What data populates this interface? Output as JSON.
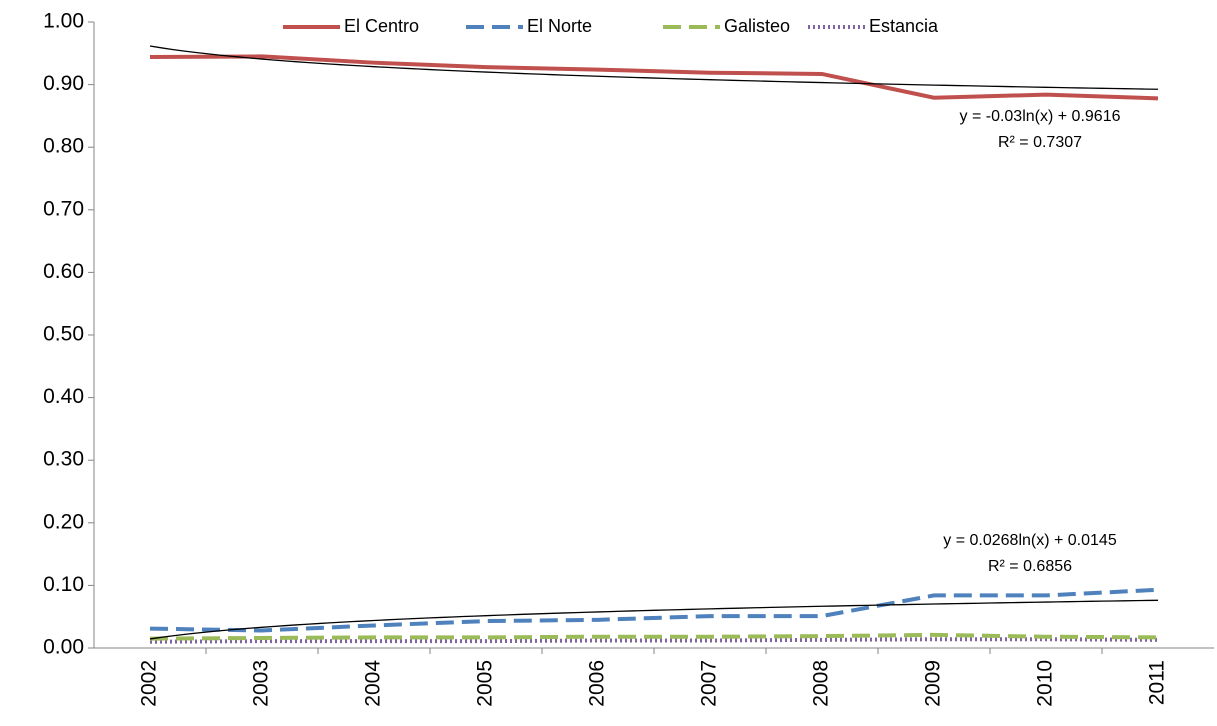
{
  "chart_data": {
    "type": "line",
    "categories": [
      "2002",
      "2003",
      "2004",
      "2005",
      "2006",
      "2007",
      "2008",
      "2009",
      "2010",
      "2011"
    ],
    "series": [
      {
        "name": "El Centro",
        "color": "#c0504d",
        "dash": "solid",
        "values": [
          0.944,
          0.945,
          0.935,
          0.928,
          0.924,
          0.919,
          0.917,
          0.879,
          0.884,
          0.878
        ]
      },
      {
        "name": "El Norte",
        "color": "#4f81bd",
        "dash": "dash",
        "values": [
          0.031,
          0.028,
          0.036,
          0.043,
          0.045,
          0.051,
          0.051,
          0.084,
          0.084,
          0.093
        ]
      },
      {
        "name": "Galisteo",
        "color": "#9bbb59",
        "dash": "dash",
        "values": [
          0.015,
          0.016,
          0.017,
          0.017,
          0.018,
          0.018,
          0.019,
          0.021,
          0.018,
          0.017
        ]
      },
      {
        "name": "Estancia",
        "color": "#8064a2",
        "dash": "dot",
        "values": [
          0.01,
          0.011,
          0.011,
          0.011,
          0.012,
          0.012,
          0.013,
          0.014,
          0.014,
          0.013
        ]
      }
    ],
    "trendlines": [
      {
        "slope": -0.03,
        "intercept": 0.9616,
        "equation": "y = -0.03ln(x) + 0.9616",
        "r2": "R² = 0.7307",
        "color": "#000000"
      },
      {
        "slope": 0.0268,
        "intercept": 0.0145,
        "equation": "y = 0.0268ln(x) + 0.0145",
        "r2": "R² = 0.6856",
        "color": "#000000"
      }
    ],
    "ylim": [
      0,
      1
    ],
    "yticks": [
      {
        "value": 0,
        "label": "0.00"
      },
      {
        "value": 0.1,
        "label": "0.10"
      },
      {
        "value": 0.2,
        "label": "0.20"
      },
      {
        "value": 0.3,
        "label": "0.30"
      },
      {
        "value": 0.4,
        "label": "0.40"
      },
      {
        "value": 0.5,
        "label": "0.50"
      },
      {
        "value": 0.6,
        "label": "0.60"
      },
      {
        "value": 0.7,
        "label": "0.70"
      },
      {
        "value": 0.8,
        "label": "0.80"
      },
      {
        "value": 0.9,
        "label": "0.90"
      },
      {
        "value": 1,
        "label": "1.00"
      }
    ],
    "grid": false,
    "legend": "top"
  }
}
